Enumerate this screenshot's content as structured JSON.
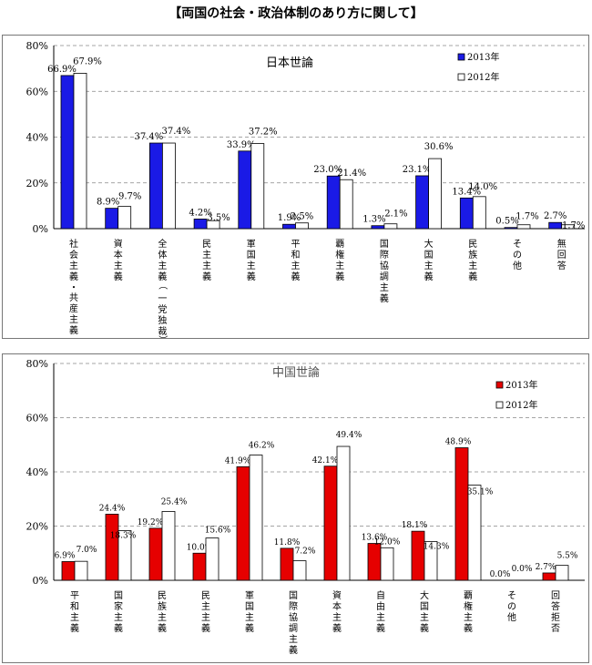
{
  "page": {
    "title": "【両国の社会・政治体制のあり方に関して】"
  },
  "chart_data": [
    {
      "type": "bar",
      "title": "日本世論",
      "ylim": [
        0,
        80
      ],
      "yticks": [
        "0%",
        "20%",
        "40%",
        "60%",
        "80%"
      ],
      "grid": true,
      "legend": "top-right",
      "categories": [
        "社会主義・共産主義",
        "資本主義",
        "全体主義（一党独裁）",
        "民主主義",
        "軍国主義",
        "平和主義",
        "覇権主義",
        "国際協調主義",
        "大国主義",
        "民族主義",
        "その他",
        "無回答"
      ],
      "series": [
        {
          "name": "2013年",
          "color": "#1a1ae6",
          "values": [
            66.9,
            8.9,
            37.4,
            4.2,
            33.9,
            1.9,
            23.0,
            1.3,
            23.1,
            13.4,
            0.5,
            2.7
          ],
          "labels": [
            "66.9%",
            "8.9%",
            "37.4%",
            "4.2%",
            "33.9%",
            "1.9%",
            "23.0%",
            "1.3%",
            "23.1%",
            "13.4%",
            "0.5%",
            "2.7%"
          ]
        },
        {
          "name": "2012年",
          "color": "#ffffff",
          "values": [
            67.9,
            9.7,
            37.4,
            3.5,
            37.2,
            2.5,
            21.4,
            2.1,
            30.6,
            14.0,
            1.7,
            1.7
          ],
          "labels": [
            "67.9%",
            "9.7%",
            "37.4%",
            "3.5%",
            "37.2%",
            "2.5%",
            "21.4%",
            "2.1%",
            "30.6%",
            "14.0%",
            "1.7%",
            "1.7%"
          ]
        }
      ]
    },
    {
      "type": "bar",
      "title": "中国世論",
      "ylim": [
        0,
        80
      ],
      "yticks": [
        "0%",
        "20%",
        "40%",
        "60%",
        "80%"
      ],
      "grid": true,
      "legend": "top-right",
      "categories": [
        "平和主義",
        "国家主義",
        "民族主義",
        "民主主義",
        "軍国主義",
        "国際協調主義",
        "資本主義",
        "自由主義",
        "大国主義",
        "覇権主義",
        "その他",
        "回答拒否"
      ],
      "series": [
        {
          "name": "2013年",
          "color": "#e60000",
          "values": [
            6.9,
            24.4,
            19.2,
            10.0,
            41.9,
            11.8,
            42.1,
            13.6,
            18.1,
            48.9,
            0.0,
            2.7
          ],
          "labels": [
            "6.9%",
            "24.4%",
            "19.2%",
            "10.0%",
            "41.9%",
            "11.8%",
            "42.1%",
            "13.6%",
            "18.1%",
            "48.9%",
            "0.0%",
            "2.7%"
          ]
        },
        {
          "name": "2012年",
          "color": "#ffffff",
          "values": [
            7.0,
            18.3,
            25.4,
            15.6,
            46.2,
            7.2,
            49.4,
            12.0,
            14.3,
            35.1,
            0.0,
            5.5
          ],
          "labels": [
            "7.0%",
            "18.3%",
            "25.4%",
            "15.6%",
            "46.2%",
            "7.2%",
            "49.4%",
            "12.0%",
            "14.3%",
            "35.1%",
            "0.0%",
            "5.5%"
          ]
        }
      ]
    }
  ]
}
